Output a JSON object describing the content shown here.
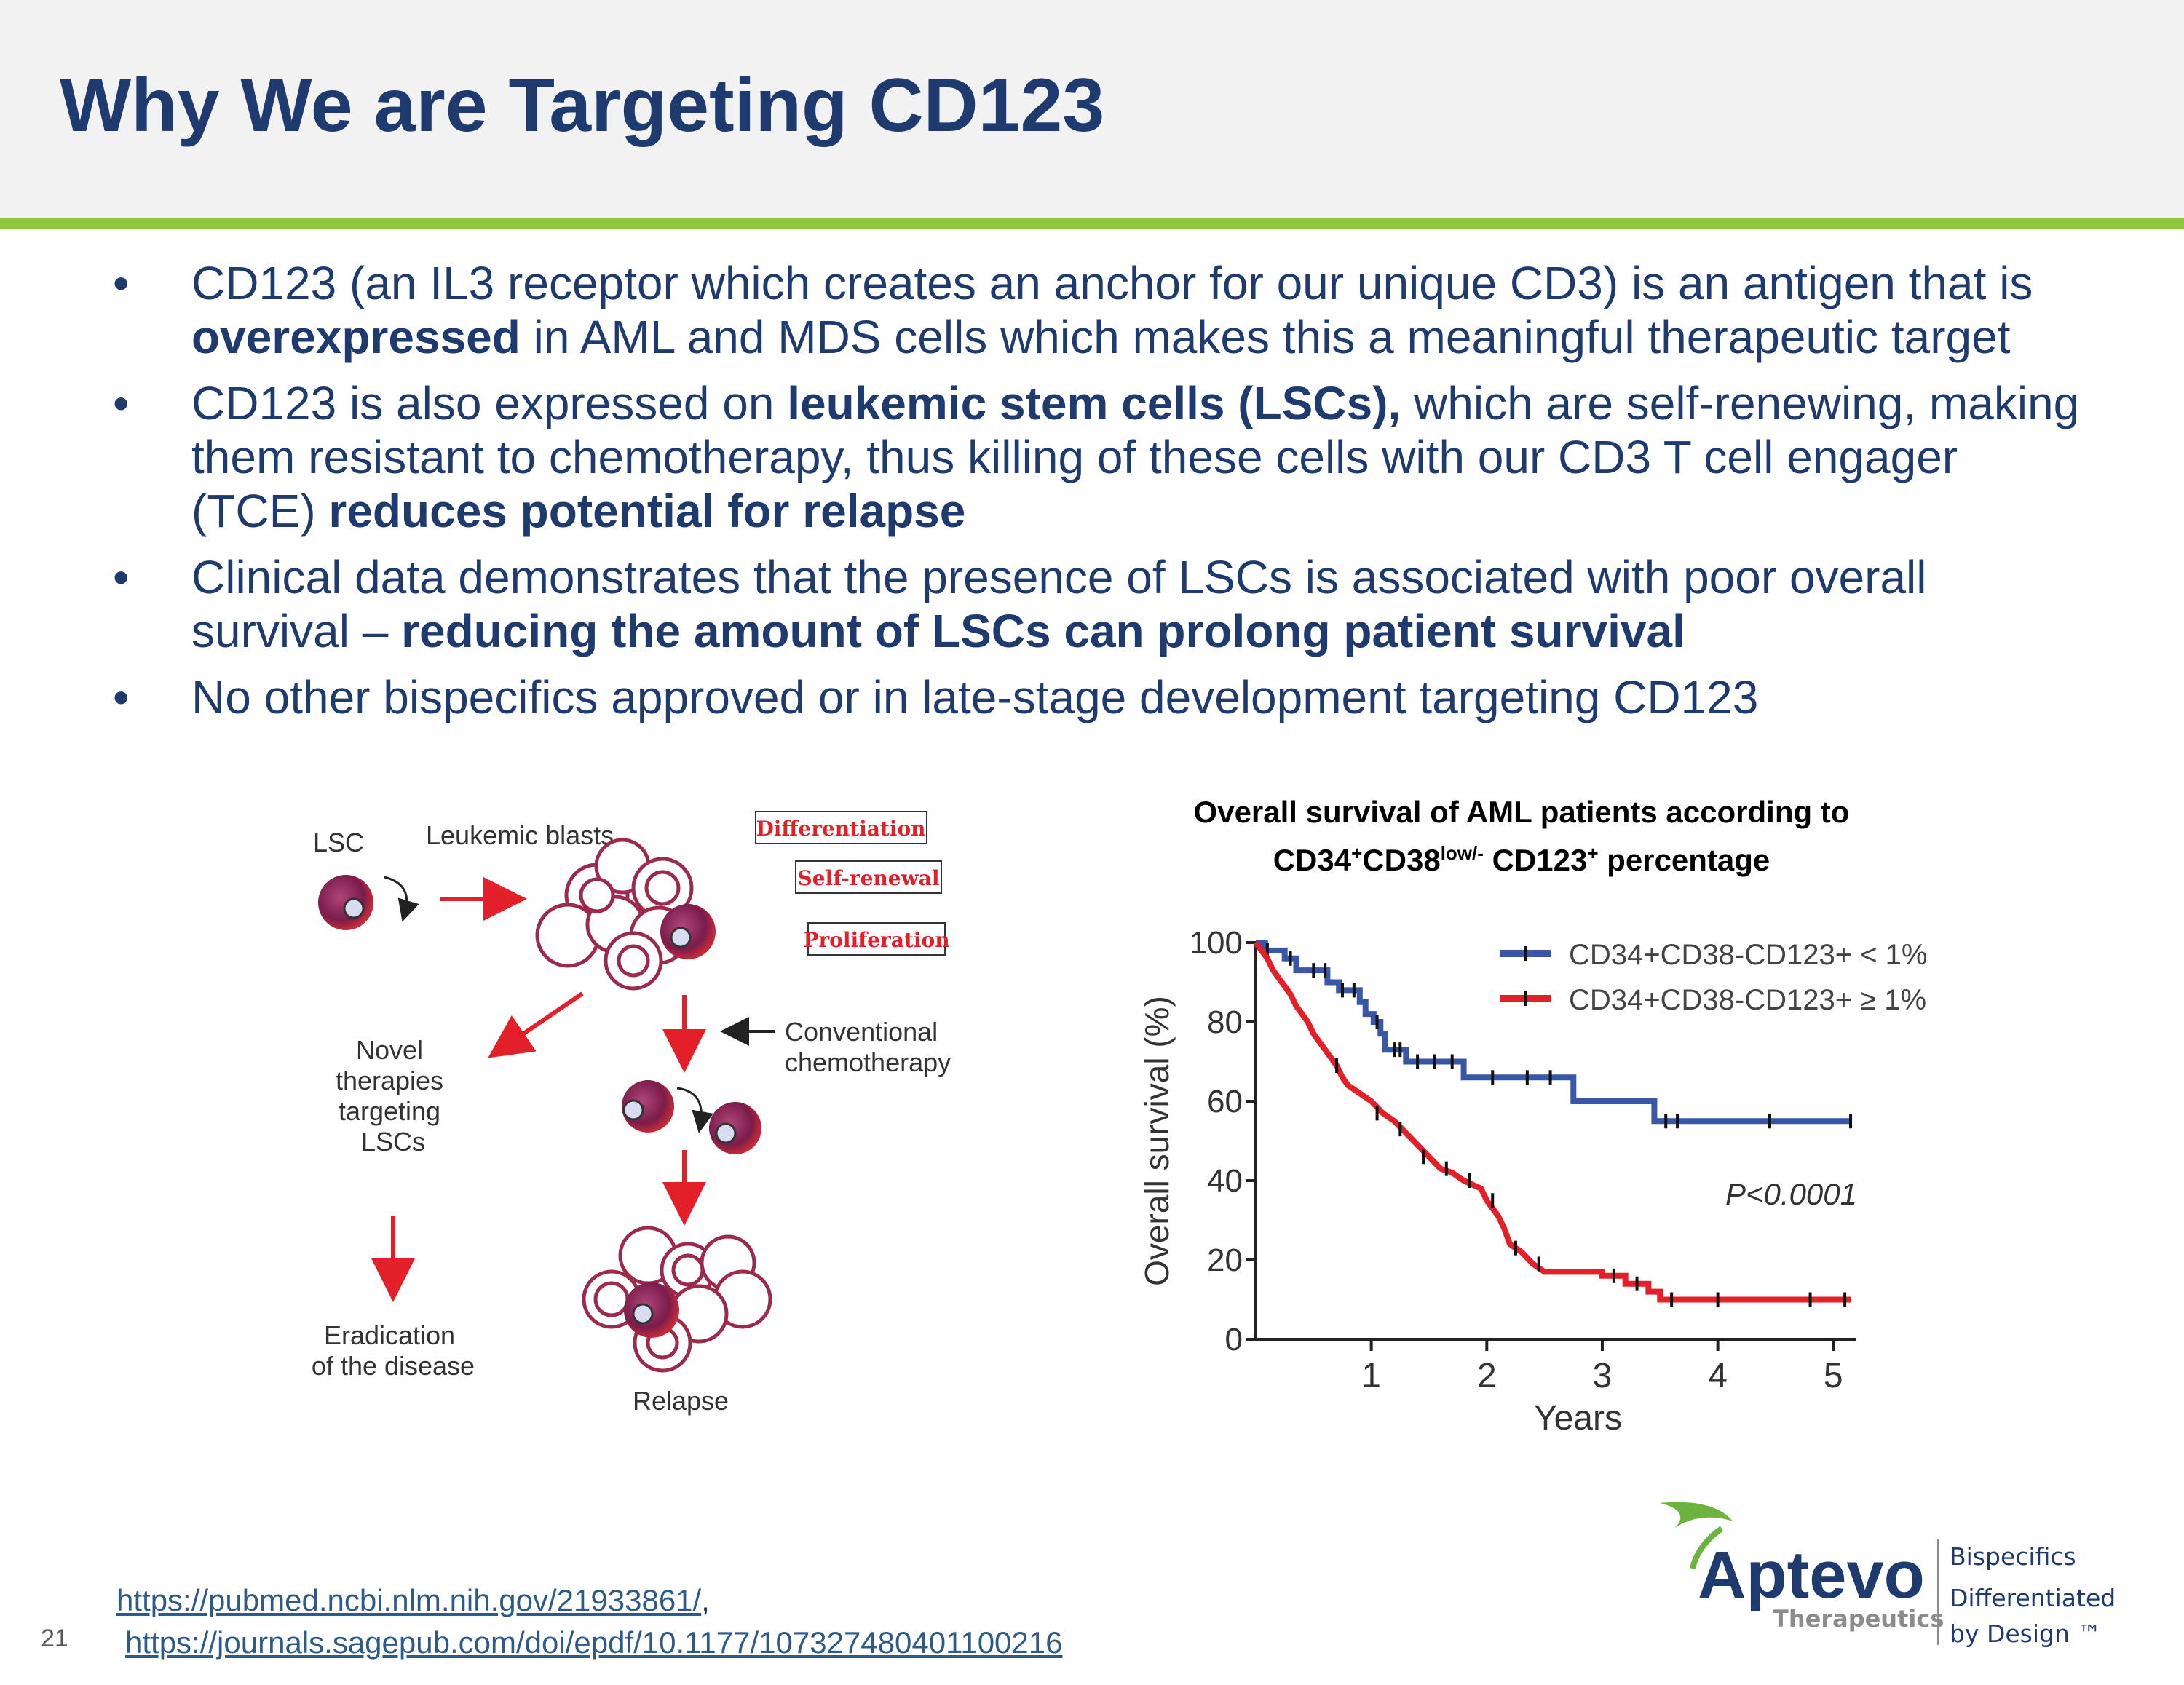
{
  "slide": {
    "title": "Why We are Targeting CD123",
    "page_number": "21"
  },
  "bullets": [
    {
      "parts": [
        {
          "t": "CD123 (an IL3 receptor which creates an anchor for our unique CD3) is an antigen that is ",
          "b": false
        },
        {
          "t": "overexpressed",
          "b": true
        },
        {
          "t": " in AML and MDS cells which makes this a meaningful therapeutic target",
          "b": false
        }
      ]
    },
    {
      "parts": [
        {
          "t": "CD123 is also expressed on ",
          "b": false
        },
        {
          "t": "leukemic stem cells (LSCs),",
          "b": true
        },
        {
          "t": " which are self-renewing, making them resistant to chemotherapy, thus killing of these cells with our CD3 T cell engager (TCE) ",
          "b": false
        },
        {
          "t": "reduces potential for relapse",
          "b": true
        }
      ]
    },
    {
      "parts": [
        {
          "t": "Clinical data demonstrates that the presence of LSCs is associated with poor overall survival – ",
          "b": false
        },
        {
          "t": "reducing the amount of LSCs can prolong patient survival",
          "b": true
        }
      ]
    },
    {
      "parts": [
        {
          "t": "No other bispecifics approved or in late-stage development targeting CD123",
          "b": false
        }
      ]
    }
  ],
  "diagram": {
    "lsc": "LSC",
    "leukemic_blasts": "Leukemic blasts",
    "tag_differentiation": "Differentiation",
    "tag_self_renewal": "Self-renewal",
    "tag_proliferation": "Proliferation",
    "novel": [
      "Novel",
      "therapies",
      "targeting",
      "LSCs"
    ],
    "conventional": [
      "Conventional",
      "chemotherapy"
    ],
    "eradication": [
      "Eradication",
      "of the disease"
    ],
    "relapse": "Relapse"
  },
  "chart_title": {
    "line1": "Overall survival of AML patients according to",
    "cd34": "CD34",
    "cd34_sup": "+",
    "cd38": "CD38",
    "cd38_sup": "low/-",
    "cd123": " CD123",
    "cd123_sup": "+",
    "tail": " percentage"
  },
  "chart_data": {
    "type": "line",
    "ylabel": "Overall survival (%)",
    "xlabel": "Years",
    "xlim": [
      0,
      5.2
    ],
    "ylim": [
      0,
      100
    ],
    "xticks": [
      1,
      2,
      3,
      4,
      5
    ],
    "yticks": [
      0,
      20,
      40,
      60,
      80,
      100
    ],
    "annotation": "P<0.0001",
    "legend_position": "top-right",
    "series": [
      {
        "name": "CD34+CD38-CD123+ < 1%",
        "color": "#3a56a7",
        "points": [
          [
            0,
            100
          ],
          [
            0.08,
            100
          ],
          [
            0.08,
            98
          ],
          [
            0.25,
            98
          ],
          [
            0.25,
            96
          ],
          [
            0.35,
            96
          ],
          [
            0.35,
            93
          ],
          [
            0.62,
            93
          ],
          [
            0.62,
            90
          ],
          [
            0.72,
            90
          ],
          [
            0.72,
            88
          ],
          [
            0.9,
            88
          ],
          [
            0.9,
            85
          ],
          [
            0.95,
            85
          ],
          [
            0.95,
            82
          ],
          [
            1.02,
            82
          ],
          [
            1.02,
            80
          ],
          [
            1.08,
            80
          ],
          [
            1.08,
            77
          ],
          [
            1.12,
            77
          ],
          [
            1.12,
            73
          ],
          [
            1.3,
            73
          ],
          [
            1.3,
            70
          ],
          [
            1.8,
            70
          ],
          [
            1.8,
            66
          ],
          [
            2.75,
            66
          ],
          [
            2.75,
            60
          ],
          [
            3.45,
            60
          ],
          [
            3.45,
            55
          ],
          [
            5.15,
            55
          ]
        ],
        "censors": [
          [
            0.1,
            98
          ],
          [
            0.3,
            96
          ],
          [
            0.5,
            93
          ],
          [
            0.6,
            93
          ],
          [
            0.75,
            88
          ],
          [
            0.85,
            88
          ],
          [
            1.05,
            80
          ],
          [
            1.2,
            73
          ],
          [
            1.25,
            73
          ],
          [
            1.4,
            70
          ],
          [
            1.55,
            70
          ],
          [
            1.7,
            70
          ],
          [
            2.05,
            66
          ],
          [
            2.35,
            66
          ],
          [
            2.55,
            66
          ],
          [
            3.55,
            55
          ],
          [
            3.65,
            55
          ],
          [
            4.45,
            55
          ],
          [
            5.15,
            55
          ]
        ]
      },
      {
        "name": "CD34+CD38-CD123+ ≥ 1%",
        "color": "#e3202a",
        "points": [
          [
            0,
            100
          ],
          [
            0.05,
            98
          ],
          [
            0.1,
            96
          ],
          [
            0.15,
            93
          ],
          [
            0.2,
            91
          ],
          [
            0.25,
            89
          ],
          [
            0.3,
            87
          ],
          [
            0.35,
            84
          ],
          [
            0.4,
            82
          ],
          [
            0.45,
            80
          ],
          [
            0.5,
            77
          ],
          [
            0.55,
            75
          ],
          [
            0.6,
            73
          ],
          [
            0.65,
            71
          ],
          [
            0.7,
            69
          ],
          [
            0.75,
            66
          ],
          [
            0.8,
            64
          ],
          [
            0.9,
            62
          ],
          [
            1.0,
            60
          ],
          [
            1.1,
            57
          ],
          [
            1.2,
            55
          ],
          [
            1.3,
            52
          ],
          [
            1.4,
            49
          ],
          [
            1.5,
            46
          ],
          [
            1.6,
            43
          ],
          [
            1.7,
            42
          ],
          [
            1.8,
            40
          ],
          [
            1.95,
            38
          ],
          [
            2.0,
            35
          ],
          [
            2.1,
            31
          ],
          [
            2.15,
            28
          ],
          [
            2.2,
            24
          ],
          [
            2.3,
            22
          ],
          [
            2.4,
            19
          ],
          [
            2.5,
            17
          ],
          [
            3.0,
            17
          ],
          [
            3.0,
            16
          ],
          [
            3.2,
            16
          ],
          [
            3.2,
            14
          ],
          [
            3.4,
            14
          ],
          [
            3.4,
            12
          ],
          [
            3.5,
            12
          ],
          [
            3.5,
            10
          ],
          [
            5.15,
            10
          ]
        ],
        "censors": [
          [
            0.7,
            69
          ],
          [
            1.05,
            57
          ],
          [
            1.25,
            53
          ],
          [
            1.45,
            46
          ],
          [
            1.65,
            43
          ],
          [
            1.85,
            40
          ],
          [
            2.05,
            35
          ],
          [
            2.25,
            23
          ],
          [
            2.45,
            19
          ],
          [
            3.1,
            16
          ],
          [
            3.3,
            14
          ],
          [
            3.6,
            10
          ],
          [
            4.0,
            10
          ],
          [
            4.8,
            10
          ],
          [
            5.1,
            10
          ]
        ]
      }
    ]
  },
  "references": {
    "link1": "https://pubmed.ncbi.nlm.nih.gov/21933861/",
    "comma": ",",
    "link2": "https://journals.sagepub.com/doi/epdf/10.1177/107327480401100216"
  },
  "logo": {
    "name": "Aptevo",
    "sub": "Therapeutics",
    "tagline": [
      "Bispecifics",
      "Differentiated",
      "by Design ™"
    ],
    "colors": {
      "brand": "#1f3a6e",
      "leaf": "#6db33f",
      "sub": "#8c8c8c"
    }
  }
}
